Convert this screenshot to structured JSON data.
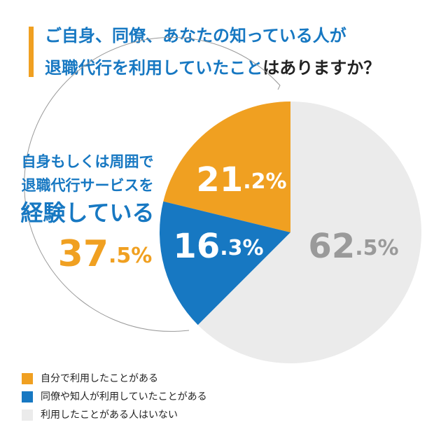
{
  "chart_data": {
    "type": "pie",
    "title_lines": [
      [
        "ご自身、同僚、あなたの知っている人が"
      ],
      [
        "退職代行を利用していたこと",
        "はありますか？"
      ]
    ],
    "categories": [
      "自分で利用したことがある",
      "同僚や知人が利用していたことがある",
      "利用したことがある人はいない"
    ],
    "values": [
      21.2,
      16.3,
      62.5
    ],
    "value_labels": [
      "21.2%",
      "16.3%",
      "62.5%"
    ],
    "colors": [
      "#f0a021",
      "#1778c2",
      "#ebebeb"
    ],
    "annotation": {
      "lines": [
        "自身もしくは周囲で",
        "退職代行サービスを",
        "経験している"
      ],
      "value_label": "37.5%"
    }
  }
}
